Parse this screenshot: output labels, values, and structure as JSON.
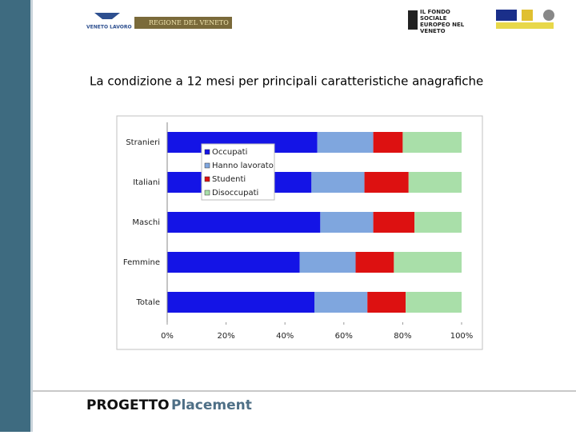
{
  "header": {
    "logo_left": "VENETO LAVORO",
    "logo_region": "REGIONE DEL VENETO",
    "logo_fse": "IL FONDO SOCIALE EUROPEO NEL VENETO"
  },
  "title": "La condizione a 12 mesi per principali caratteristiche anagrafiche",
  "footer": {
    "bold": "PROGETTO",
    "accent": "Placement"
  },
  "chart_data": {
    "type": "stacked-bar-horizontal",
    "categories": [
      "Stranieri",
      "Italiani",
      "Maschi",
      "Femmine",
      "Totale"
    ],
    "series": [
      {
        "name": "Occupati",
        "color": "#1414e6",
        "values": [
          51,
          49,
          52,
          45,
          50
        ]
      },
      {
        "name": "Hanno lavorato",
        "color": "#7fa6de",
        "values": [
          19,
          18,
          18,
          19,
          18
        ]
      },
      {
        "name": "Studenti",
        "color": "#dd1111",
        "values": [
          10,
          15,
          14,
          13,
          13
        ]
      },
      {
        "name": "Disoccupati",
        "color": "#a9dfa9",
        "values": [
          20,
          18,
          16,
          23,
          19
        ]
      }
    ],
    "xlim": [
      0,
      100
    ],
    "xticks": [
      {
        "value": 0,
        "label": "0%"
      },
      {
        "value": 20,
        "label": "20%"
      },
      {
        "value": 40,
        "label": "40%"
      },
      {
        "value": 60,
        "label": "60%"
      },
      {
        "value": 80,
        "label": "80%"
      },
      {
        "value": 100,
        "label": "100%"
      }
    ],
    "legend": "upper-left",
    "grid": false
  }
}
